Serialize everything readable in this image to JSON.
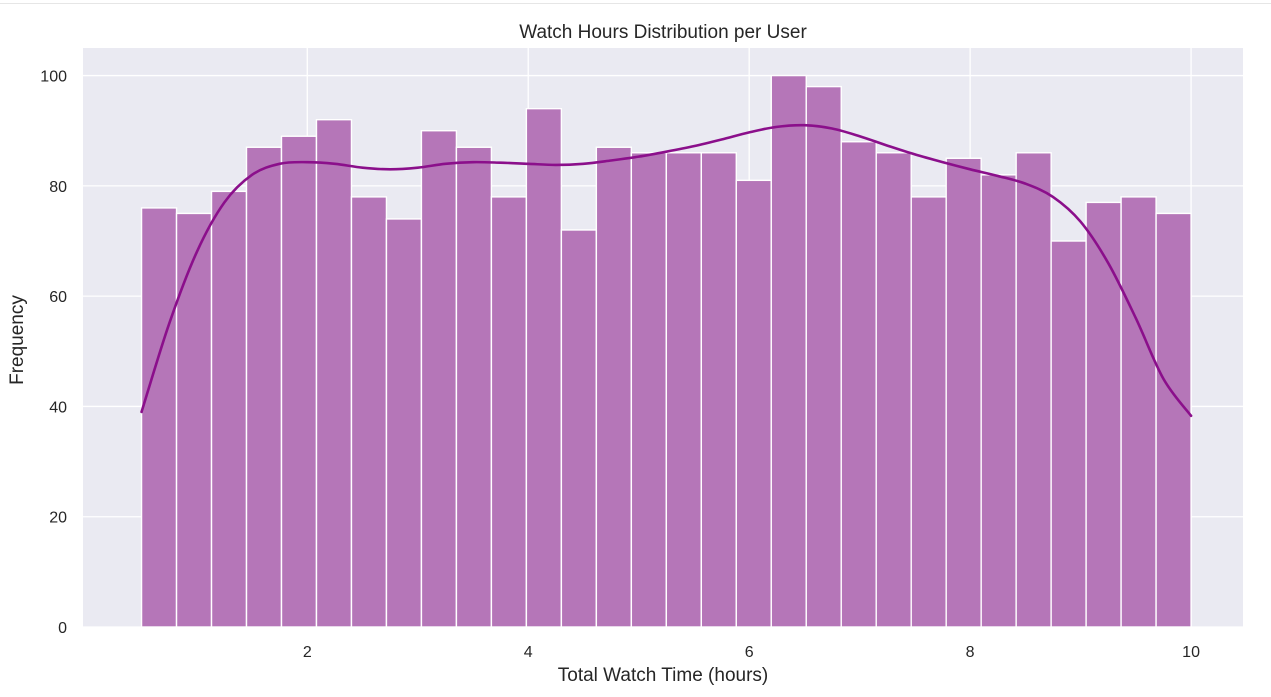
{
  "chart_data": {
    "type": "bar",
    "title": "Watch Hours Distribution per User",
    "xlabel": "Total Watch Time (hours)",
    "ylabel": "Frequency",
    "x_range": [
      0.5,
      10.0
    ],
    "xlim": [
      -0.03,
      10.47
    ],
    "ylim": [
      0,
      105
    ],
    "xticks": [
      2,
      4,
      6,
      8,
      10
    ],
    "yticks": [
      0,
      20,
      40,
      60,
      80,
      100
    ],
    "grid": true,
    "values": [
      76,
      75,
      79,
      87,
      89,
      92,
      78,
      74,
      90,
      87,
      78,
      94,
      72,
      87,
      86,
      86,
      86,
      81,
      100,
      98,
      88,
      86,
      78,
      85,
      82,
      86,
      70,
      77,
      78,
      75
    ],
    "kde": {
      "x": [
        0.5,
        0.75,
        1.0,
        1.25,
        1.5,
        1.75,
        2.0,
        2.25,
        2.5,
        2.75,
        3.0,
        3.25,
        3.5,
        3.75,
        4.0,
        4.25,
        4.5,
        4.75,
        5.0,
        5.25,
        5.5,
        5.75,
        6.0,
        6.25,
        6.5,
        6.75,
        7.0,
        7.25,
        7.5,
        7.75,
        8.0,
        8.25,
        8.5,
        8.75,
        9.0,
        9.25,
        9.5,
        9.75,
        10.0
      ],
      "y": [
        39,
        55,
        68,
        77,
        82,
        84,
        84.3,
        84,
        83.3,
        83,
        83.3,
        84,
        84.3,
        84.2,
        84,
        83.8,
        84,
        84.6,
        85.3,
        86.2,
        87.2,
        88.4,
        89.7,
        90.7,
        91,
        90.4,
        89,
        87.3,
        85.7,
        84.3,
        83,
        81.8,
        80.4,
        78,
        73.5,
        66,
        56,
        45,
        38.3
      ]
    },
    "colors": {
      "bar_fill": "#b576b8",
      "bar_edge": "#ffffff",
      "kde_line": "#8b0f8b",
      "plot_background": "#eaeaf2",
      "grid": "#ffffff",
      "text": "#262626"
    }
  }
}
